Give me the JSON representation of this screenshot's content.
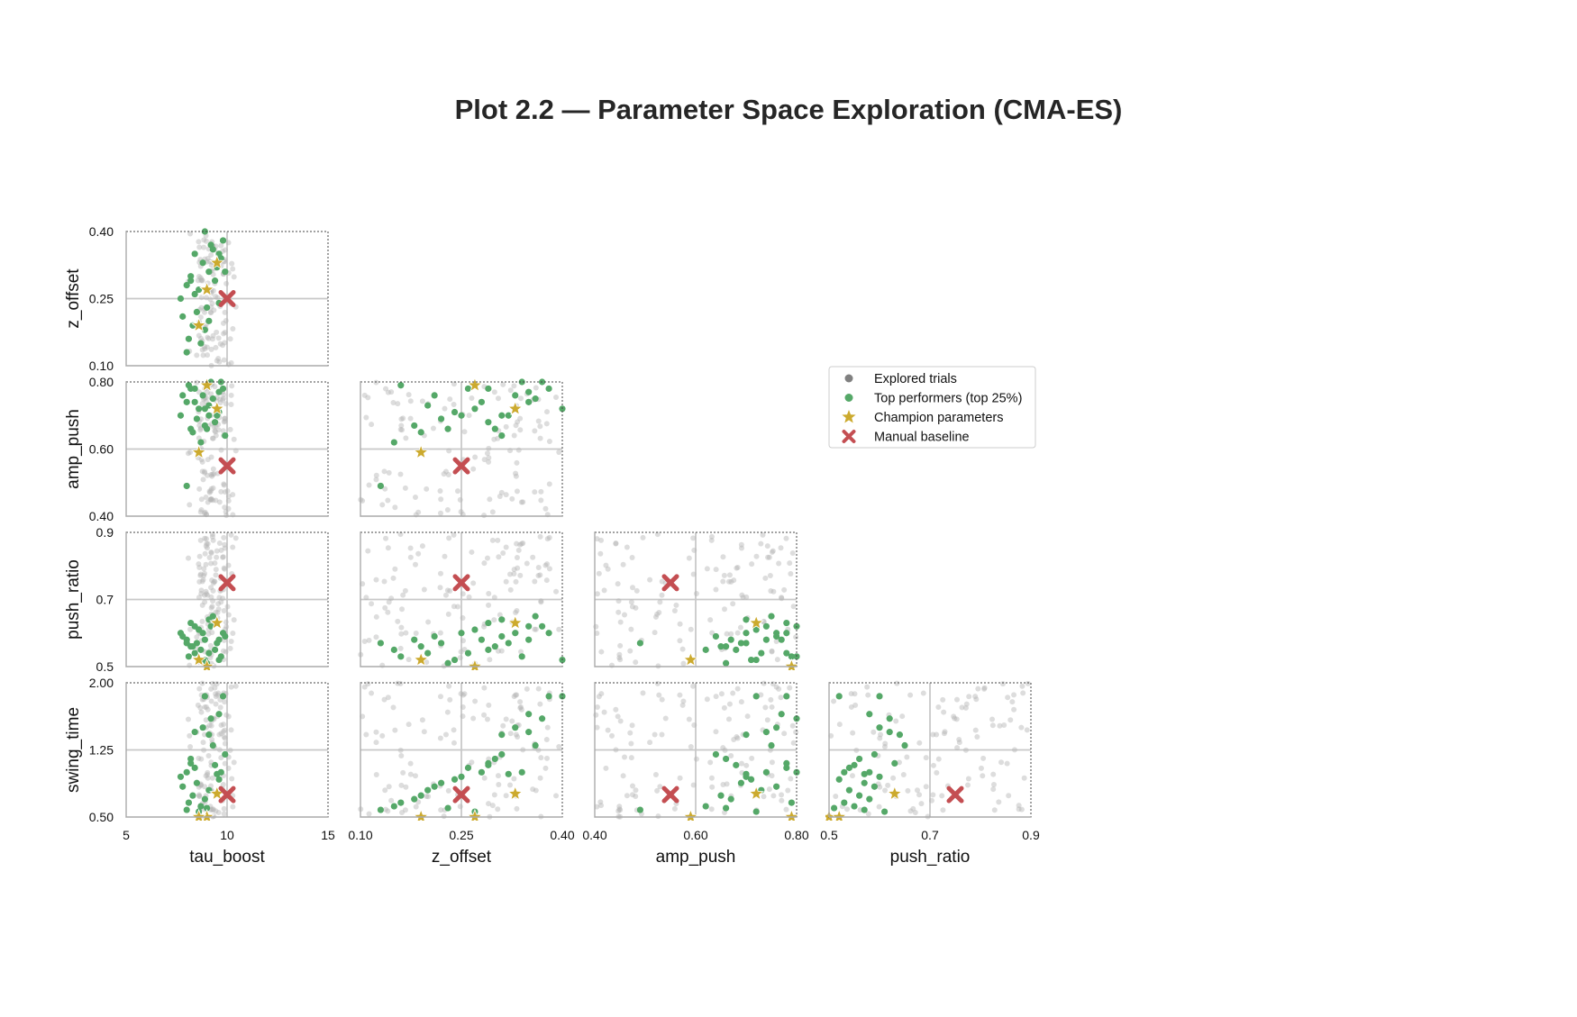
{
  "chart_data": {
    "type": "scatter",
    "title": "Plot 2.2 — Parameter Space Exploration (CMA-ES)",
    "parameters": [
      "tau_boost",
      "z_offset",
      "amp_push",
      "push_ratio",
      "swing_time"
    ],
    "ranges": {
      "tau_boost": [
        5,
        15
      ],
      "z_offset": [
        0.1,
        0.4
      ],
      "amp_push": [
        0.4,
        0.8
      ],
      "push_ratio": [
        0.5,
        0.9
      ],
      "swing_time": [
        0.5,
        2.0
      ]
    },
    "ticks": {
      "tau_boost": [
        "5",
        "10",
        "15"
      ],
      "z_offset": [
        "0.10",
        "0.25",
        "0.40"
      ],
      "amp_push": [
        "0.40",
        "0.60",
        "0.80"
      ],
      "push_ratio": [
        "0.5",
        "0.7",
        "0.9"
      ],
      "swing_time": [
        "0.50",
        "1.25",
        "2.00"
      ]
    },
    "axis_labels": {
      "tau_boost": "tau_boost",
      "z_offset": "z_offset",
      "amp_push": "amp_push",
      "push_ratio": "push_ratio",
      "swing_time": "swing_time"
    },
    "legend": {
      "placement": "right",
      "entries": [
        {
          "key": "explored",
          "label": "Explored trials",
          "color": "#808080"
        },
        {
          "key": "top",
          "label": "Top performers (top 25%)",
          "color": "#55a868"
        },
        {
          "key": "champion",
          "label": "Champion parameters",
          "color": "#ccaa2e"
        },
        {
          "key": "baseline",
          "label": "Manual baseline",
          "color": "#c44e52"
        }
      ]
    },
    "reference_lines": {
      "tau_boost": 10,
      "z_offset": 0.25,
      "amp_push": 0.6,
      "push_ratio": 0.7,
      "swing_time": 1.25
    },
    "baseline": {
      "tau_boost": 10.0,
      "z_offset": 0.25,
      "amp_push": 0.55,
      "push_ratio": 0.75,
      "swing_time": 0.75
    },
    "champions": [
      {
        "tau_boost": 9.5,
        "z_offset": 0.33,
        "amp_push": 0.72,
        "push_ratio": 0.63,
        "swing_time": 0.76
      },
      {
        "tau_boost": 9.0,
        "z_offset": 0.27,
        "amp_push": 0.79,
        "push_ratio": 0.5,
        "swing_time": 0.5
      },
      {
        "tau_boost": 8.6,
        "z_offset": 0.19,
        "amp_push": 0.59,
        "push_ratio": 0.52,
        "swing_time": 0.5
      }
    ],
    "top_performers": [
      {
        "tau_boost": 8.9,
        "z_offset": 0.4,
        "amp_push": 0.72,
        "push_ratio": 0.52,
        "swing_time": 1.85
      },
      {
        "tau_boost": 9.8,
        "z_offset": 0.38,
        "amp_push": 0.78,
        "push_ratio": 0.6,
        "swing_time": 1.85
      },
      {
        "tau_boost": 9.2,
        "z_offset": 0.37,
        "amp_push": 0.8,
        "push_ratio": 0.62,
        "swing_time": 1.6
      },
      {
        "tau_boost": 9.6,
        "z_offset": 0.35,
        "amp_push": 0.77,
        "push_ratio": 0.58,
        "swing_time": 1.65
      },
      {
        "tau_boost": 8.4,
        "z_offset": 0.35,
        "amp_push": 0.74,
        "push_ratio": 0.62,
        "swing_time": 1.45
      },
      {
        "tau_boost": 8.8,
        "z_offset": 0.33,
        "amp_push": 0.76,
        "push_ratio": 0.6,
        "swing_time": 1.5
      },
      {
        "tau_boost": 9.1,
        "z_offset": 0.31,
        "amp_push": 0.7,
        "push_ratio": 0.64,
        "swing_time": 1.42
      },
      {
        "tau_boost": 9.9,
        "z_offset": 0.31,
        "amp_push": 0.64,
        "push_ratio": 0.59,
        "swing_time": 1.2
      },
      {
        "tau_boost": 8.2,
        "z_offset": 0.3,
        "amp_push": 0.66,
        "push_ratio": 0.56,
        "swing_time": 1.15
      },
      {
        "tau_boost": 9.4,
        "z_offset": 0.29,
        "amp_push": 0.68,
        "push_ratio": 0.55,
        "swing_time": 1.08
      },
      {
        "tau_boost": 8.0,
        "z_offset": 0.28,
        "amp_push": 0.74,
        "push_ratio": 0.58,
        "swing_time": 1.0
      },
      {
        "tau_boost": 7.7,
        "z_offset": 0.25,
        "amp_push": 0.7,
        "push_ratio": 0.6,
        "swing_time": 0.95
      },
      {
        "tau_boost": 8.4,
        "z_offset": 0.26,
        "amp_push": 0.78,
        "push_ratio": 0.54,
        "swing_time": 1.05
      },
      {
        "tau_boost": 9.6,
        "z_offset": 0.24,
        "amp_push": 0.71,
        "push_ratio": 0.52,
        "swing_time": 0.92
      },
      {
        "tau_boost": 8.5,
        "z_offset": 0.22,
        "amp_push": 0.69,
        "push_ratio": 0.57,
        "swing_time": 0.88
      },
      {
        "tau_boost": 7.8,
        "z_offset": 0.21,
        "amp_push": 0.76,
        "push_ratio": 0.59,
        "swing_time": 0.84
      },
      {
        "tau_boost": 9.1,
        "z_offset": 0.2,
        "amp_push": 0.73,
        "push_ratio": 0.54,
        "swing_time": 0.8
      },
      {
        "tau_boost": 8.3,
        "z_offset": 0.19,
        "amp_push": 0.65,
        "push_ratio": 0.56,
        "swing_time": 0.74
      },
      {
        "tau_boost": 8.9,
        "z_offset": 0.18,
        "amp_push": 0.67,
        "push_ratio": 0.58,
        "swing_time": 0.7
      },
      {
        "tau_boost": 8.1,
        "z_offset": 0.16,
        "amp_push": 0.79,
        "push_ratio": 0.53,
        "swing_time": 0.66
      },
      {
        "tau_boost": 8.7,
        "z_offset": 0.15,
        "amp_push": 0.62,
        "push_ratio": 0.55,
        "swing_time": 0.62
      },
      {
        "tau_boost": 8.0,
        "z_offset": 0.13,
        "amp_push": 0.49,
        "push_ratio": 0.57,
        "swing_time": 0.58
      },
      {
        "tau_boost": 9.3,
        "z_offset": 0.36,
        "amp_push": 0.75,
        "push_ratio": 0.65,
        "swing_time": 1.3
      },
      {
        "tau_boost": 9.7,
        "z_offset": 0.34,
        "amp_push": 0.8,
        "push_ratio": 0.53,
        "swing_time": 1.0
      },
      {
        "tau_boost": 8.6,
        "z_offset": 0.27,
        "amp_push": 0.72,
        "push_ratio": 0.61,
        "swing_time": 0.56
      },
      {
        "tau_boost": 9.0,
        "z_offset": 0.23,
        "amp_push": 0.66,
        "push_ratio": 0.51,
        "swing_time": 0.6
      },
      {
        "tau_boost": 8.2,
        "z_offset": 0.29,
        "amp_push": 0.78,
        "push_ratio": 0.63,
        "swing_time": 1.1
      },
      {
        "tau_boost": 9.5,
        "z_offset": 0.32,
        "amp_push": 0.7,
        "push_ratio": 0.57,
        "swing_time": 0.98
      }
    ]
  }
}
